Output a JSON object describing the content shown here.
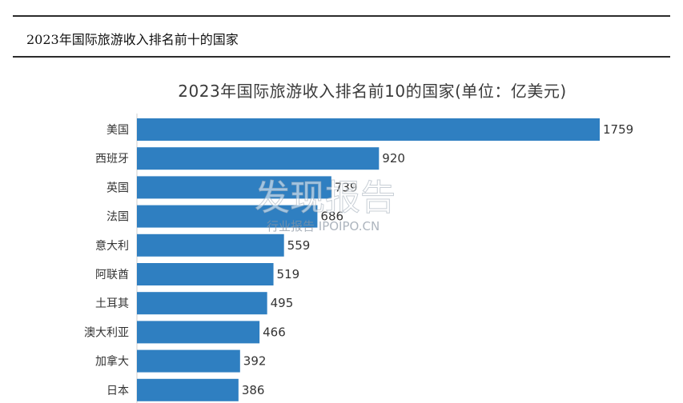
{
  "caption": "2023年国际旅游收入排名前十的国家",
  "chart_data": {
    "type": "bar",
    "orientation": "horizontal",
    "title": "2023年国际旅游收入排名前10的国家(单位：亿美元)",
    "categories": [
      "美国",
      "西班牙",
      "英国",
      "法国",
      "意大利",
      "阿联酋",
      "土耳其",
      "澳大利亚",
      "加拿大",
      "日本"
    ],
    "values": [
      1759,
      920,
      739,
      686,
      559,
      519,
      495,
      466,
      392,
      386
    ],
    "xlim": [
      0,
      1759
    ],
    "grid": false,
    "legend": "none",
    "bar_color": "#2f7fc1"
  },
  "watermark": {
    "brand": "发现报告",
    "line2": "行业报告 IPOIPO.CN"
  }
}
